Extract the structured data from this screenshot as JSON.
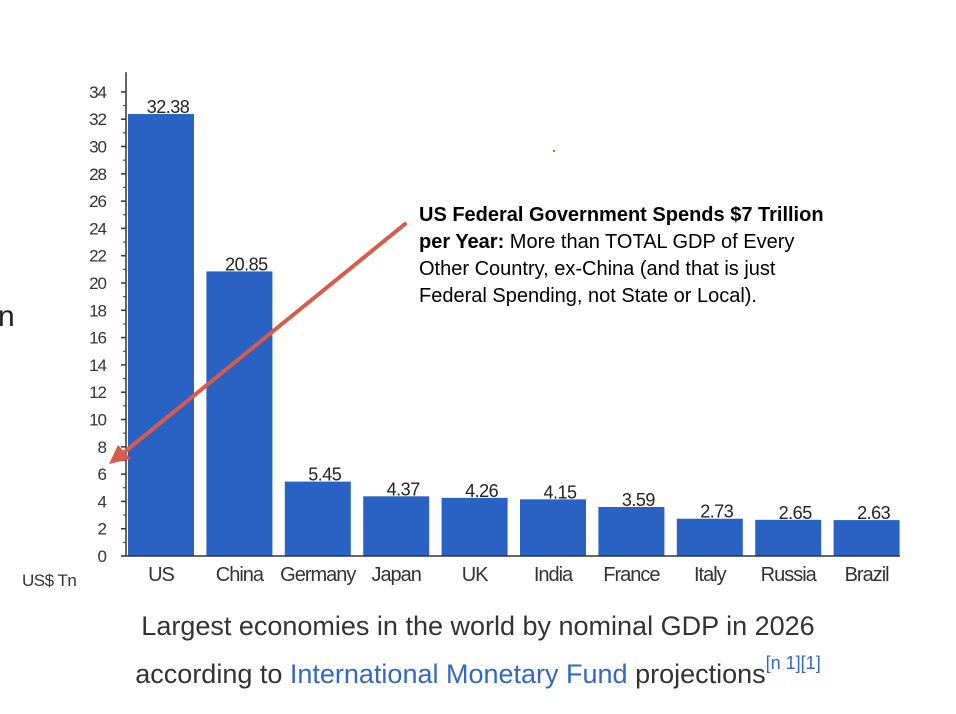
{
  "chart_data": {
    "type": "bar",
    "categories": [
      "US",
      "China",
      "Germany",
      "Japan",
      "UK",
      "India",
      "France",
      "Italy",
      "Russia",
      "Brazil"
    ],
    "values": [
      32.38,
      20.85,
      5.45,
      4.37,
      4.26,
      4.15,
      3.59,
      2.73,
      2.65,
      2.63
    ],
    "value_labels": [
      "32.38",
      "20.85",
      "5.45",
      "4.37",
      "4.26",
      "4.15",
      "3.59",
      "2.73",
      "2.65",
      "2.63"
    ],
    "yticks": [
      0,
      2,
      4,
      6,
      8,
      10,
      12,
      14,
      16,
      18,
      20,
      22,
      24,
      26,
      28,
      30,
      32,
      34
    ],
    "ylim": [
      0,
      35
    ],
    "ylabel": "US$ Tn",
    "bar_color": "#2a62c4",
    "arrow_color": "#d95b4b"
  },
  "page": {
    "edge_fragment": "n",
    "annotation": {
      "bold": "US Federal Government Spends $7 Trillion per Year:",
      "text": " More than TOTAL GDP of Every Other Country, ex-China (and that is just Federal Spending, not State or Local)."
    },
    "caption": {
      "line1": "Largest economies in the world by nominal GDP in 2026",
      "line2_prefix": "according to ",
      "link_text": "International Monetary Fund",
      "line2_suffix": " projections",
      "footnote": "[n 1][1]"
    }
  }
}
